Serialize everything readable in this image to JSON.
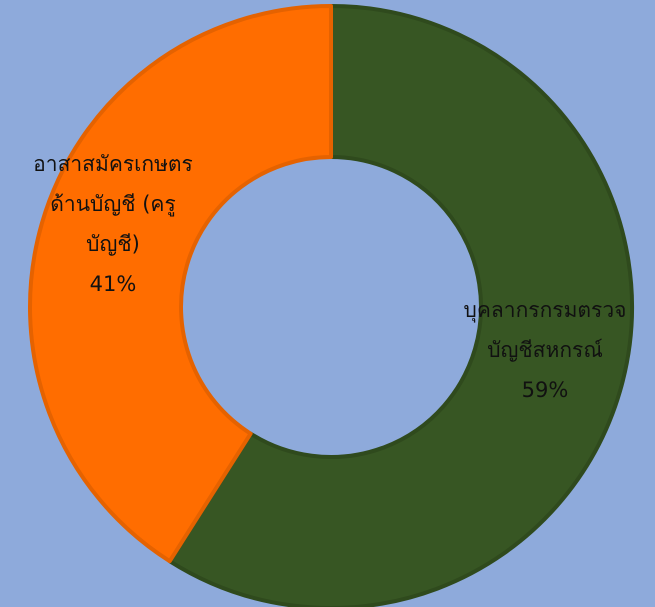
{
  "chart_data": {
    "type": "pie",
    "variant": "donut",
    "categories": [
      "บุคลากรกรมตรวจบัญชีสหกรณ์",
      "อาสาสมัครเกษตรด้านบัญชี (ครูบัญชี)"
    ],
    "values": [
      59,
      41
    ],
    "unit": "%",
    "colors": [
      "#375623",
      "#ff6d00"
    ],
    "slice_labels": [
      {
        "lines": [
          "บุคลากรกรมตรวจ",
          "บัญชีสหกรณ์"
        ],
        "percent": "59%"
      },
      {
        "lines": [
          "อาสาสมัครเกษตร",
          "ด้านบัญชี (ครู",
          "บัญชี)"
        ],
        "percent": "41%"
      }
    ],
    "legend": "none",
    "background_color": "#8eaadb"
  }
}
